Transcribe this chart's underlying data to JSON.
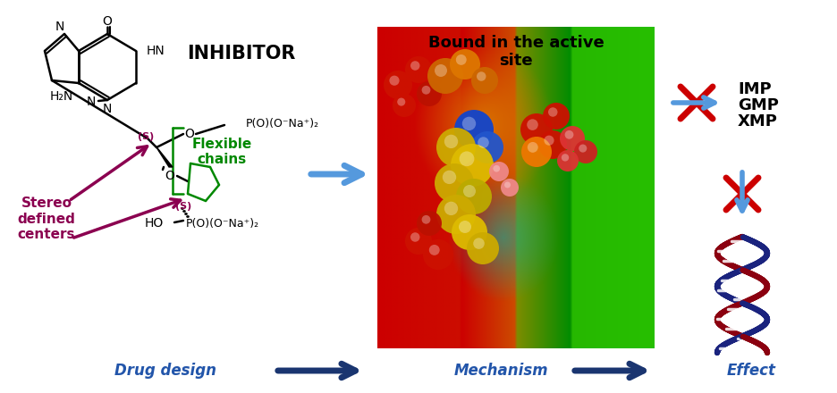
{
  "background_color": "#ffffff",
  "inhibitor_label": "INHIBITOR",
  "flexible_chains_label": "Flexible\nchains",
  "stereo_label": "Stereo\ndefined\ncenters",
  "drug_design_label": "Drug design",
  "mechanism_label": "Mechanism",
  "effect_label": "Effect",
  "bound_label": "Bound in the active\nsite",
  "imp_label": "IMP",
  "gmp_label": "GMP",
  "xmp_label": "XMP",
  "nav_arrow_color": "#1a3570",
  "cross_color": "#cc0000",
  "stereo_color": "#8b0050",
  "flexible_color": "#008800",
  "inhibitor_color": "#000000",
  "bound_text_color": "#000000",
  "blue_arrow_color": "#5599dd",
  "dna_blue": "#1a237e",
  "dna_red": "#8b0010",
  "purine_ring_color": "#000000",
  "chain_color": "#000000",
  "green_chain_color": "#008800"
}
